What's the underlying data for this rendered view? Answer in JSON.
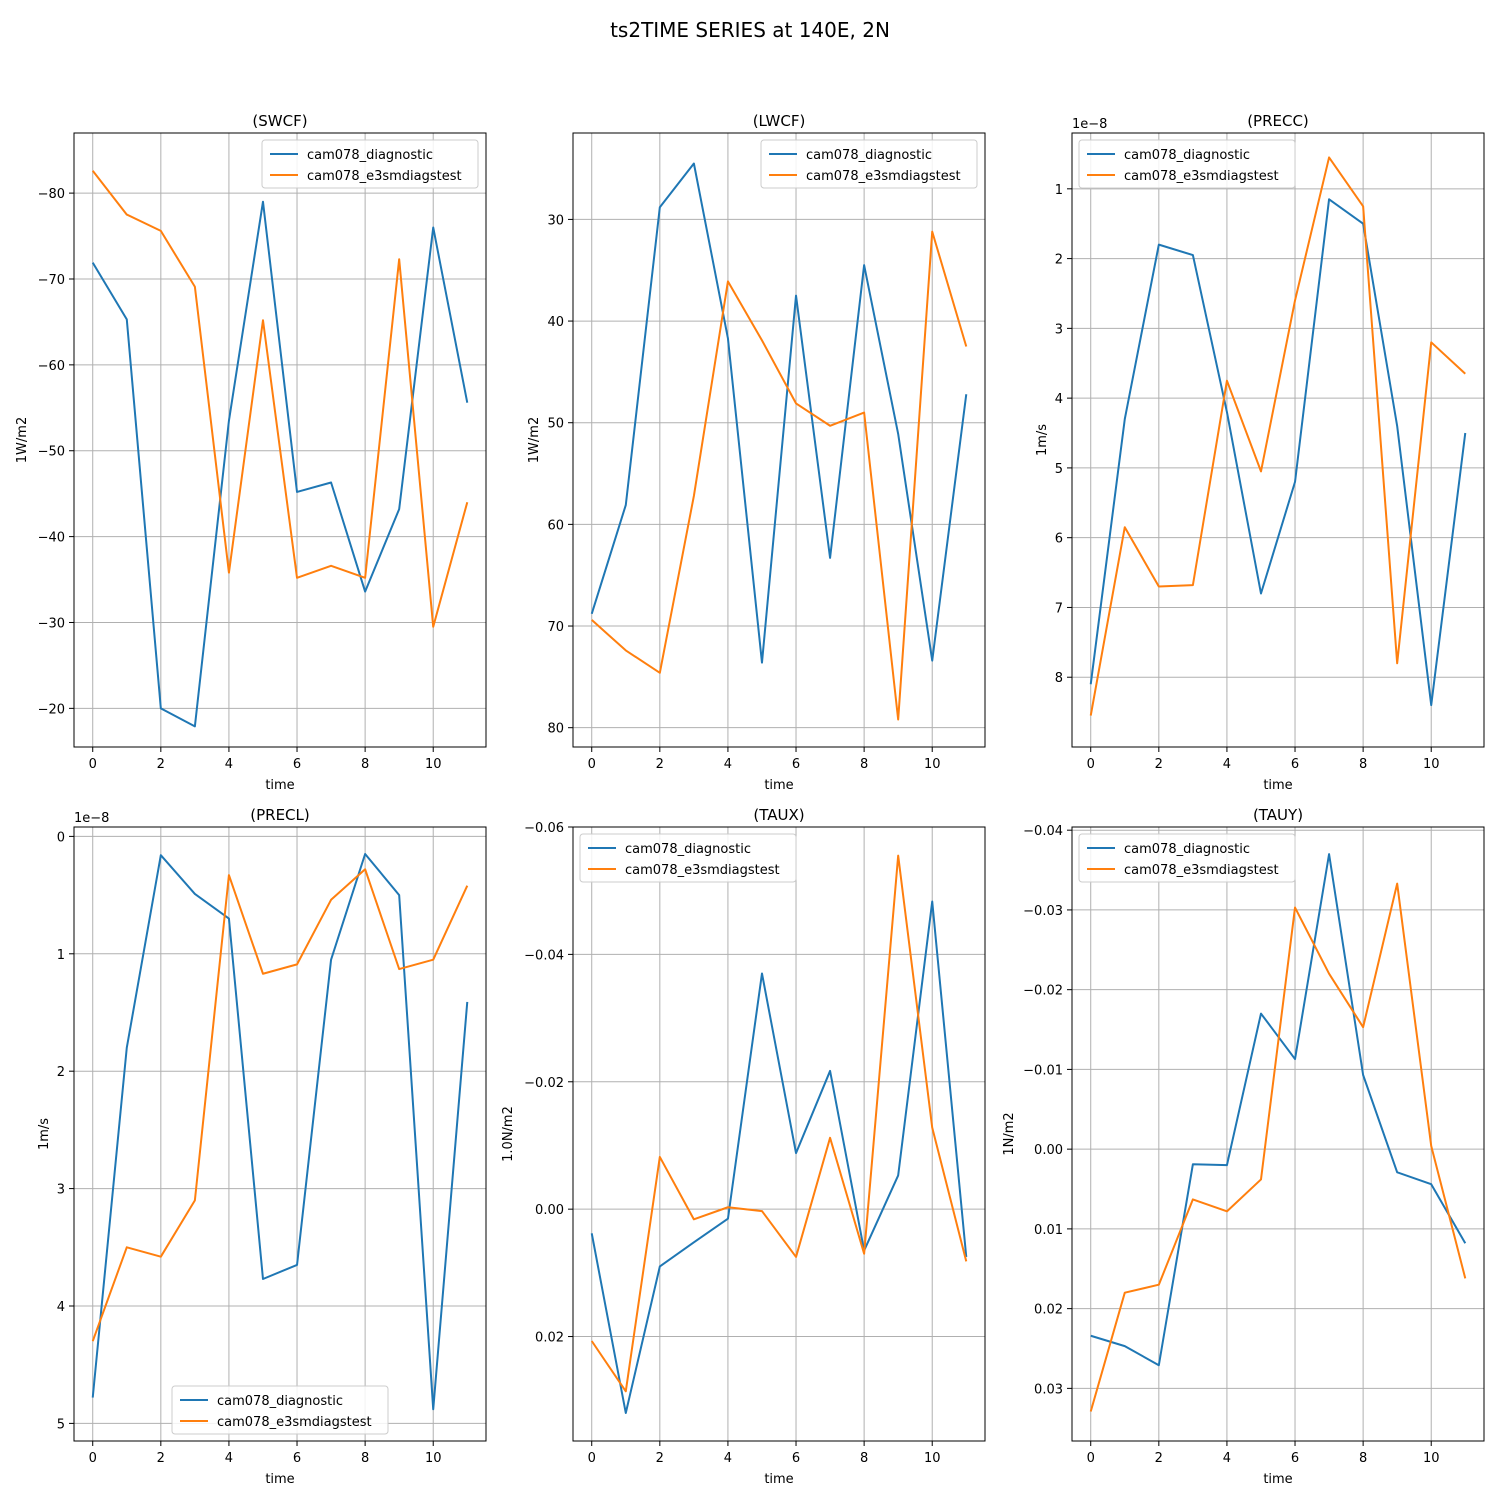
{
  "figure": {
    "suptitle": "ts2TIME SERIES at 140E, 2N"
  },
  "colors": {
    "series0": "#1f77b4",
    "series1": "#ff7f0e",
    "grid": "#b0b0b0",
    "axis": "#000000"
  },
  "chart_data": [
    {
      "type": "line",
      "title": "(SWCF)",
      "xlabel": "time",
      "ylabel": "1W/m2",
      "offset_text": "",
      "grid": true,
      "y_inverted": true,
      "legend_placement": "upper right",
      "xlim": [
        -0.55,
        11.55
      ],
      "ylim": [
        -87,
        -15.5
      ],
      "xticks": [
        0,
        2,
        4,
        6,
        8,
        10
      ],
      "xtick_labels": [
        "0",
        "2",
        "4",
        "6",
        "8",
        "10"
      ],
      "yticks": [
        -80,
        -70,
        -60,
        -50,
        -40,
        -30,
        -20
      ],
      "ytick_labels": [
        "−80",
        "−70",
        "−60",
        "−50",
        "−40",
        "−30",
        "−20"
      ],
      "x": [
        0,
        1,
        2,
        3,
        4,
        5,
        6,
        7,
        8,
        9,
        10,
        11
      ],
      "series": [
        {
          "name": "cam078_diagnostic",
          "values": [
            -71.9,
            -65.3,
            -20.0,
            -17.9,
            -53.5,
            -79.0,
            -45.2,
            -46.3,
            -33.6,
            -43.2,
            -76.0,
            -55.6
          ]
        },
        {
          "name": "cam078_e3smdiagstest",
          "values": [
            -82.6,
            -77.5,
            -75.6,
            -69.1,
            -35.8,
            -65.2,
            -35.2,
            -36.6,
            -35.2,
            -72.3,
            -29.5,
            -44.0
          ]
        }
      ]
    },
    {
      "type": "line",
      "title": "(LWCF)",
      "xlabel": "time",
      "ylabel": "1W/m2",
      "offset_text": "",
      "grid": true,
      "y_inverted": true,
      "legend_placement": "upper right",
      "xlim": [
        -0.55,
        11.55
      ],
      "ylim": [
        21.5,
        81.9
      ],
      "xticks": [
        0,
        2,
        4,
        6,
        8,
        10
      ],
      "xtick_labels": [
        "0",
        "2",
        "4",
        "6",
        "8",
        "10"
      ],
      "yticks": [
        30,
        40,
        50,
        60,
        70,
        80
      ],
      "ytick_labels": [
        "30",
        "40",
        "50",
        "60",
        "70",
        "80"
      ],
      "x": [
        0,
        1,
        2,
        3,
        4,
        5,
        6,
        7,
        8,
        9,
        10,
        11
      ],
      "series": [
        {
          "name": "cam078_diagnostic",
          "values": [
            68.8,
            58.1,
            28.8,
            24.5,
            41.7,
            73.6,
            37.5,
            63.3,
            34.5,
            51.1,
            73.4,
            47.2
          ]
        },
        {
          "name": "cam078_e3smdiagstest",
          "values": [
            69.4,
            72.4,
            74.6,
            57.2,
            36.1,
            41.9,
            48.1,
            50.3,
            49.0,
            79.2,
            31.2,
            42.5
          ]
        }
      ]
    },
    {
      "type": "line",
      "title": "(PRECC)",
      "xlabel": "time",
      "ylabel": "1m/s",
      "offset_text": "1e−8",
      "grid": true,
      "y_inverted": true,
      "legend_placement": "upper left",
      "xlim": [
        -0.55,
        11.55
      ],
      "ylim": [
        0.2,
        9.0
      ],
      "xticks": [
        0,
        2,
        4,
        6,
        8,
        10
      ],
      "xtick_labels": [
        "0",
        "2",
        "4",
        "6",
        "8",
        "10"
      ],
      "yticks": [
        1,
        2,
        3,
        4,
        5,
        6,
        7,
        8
      ],
      "ytick_labels": [
        "1",
        "2",
        "3",
        "4",
        "5",
        "6",
        "7",
        "8"
      ],
      "x": [
        0,
        1,
        2,
        3,
        4,
        5,
        6,
        7,
        8,
        9,
        10,
        11
      ],
      "series": [
        {
          "name": "cam078_diagnostic",
          "values": [
            8.1,
            4.3,
            1.8,
            1.95,
            4.2,
            6.8,
            5.2,
            1.15,
            1.5,
            4.4,
            8.4,
            4.5
          ]
        },
        {
          "name": "cam078_e3smdiagstest",
          "values": [
            8.55,
            5.85,
            6.7,
            6.68,
            3.75,
            5.05,
            2.6,
            0.55,
            1.25,
            7.8,
            3.2,
            3.65
          ]
        }
      ]
    },
    {
      "type": "line",
      "title": "(PRECL)",
      "xlabel": "time",
      "ylabel": "1m/s",
      "offset_text": "1e−8",
      "grid": true,
      "y_inverted": true,
      "legend_placement": "lower center",
      "xlim": [
        -0.55,
        11.55
      ],
      "ylim": [
        -0.08,
        5.15
      ],
      "xticks": [
        0,
        2,
        4,
        6,
        8,
        10
      ],
      "xtick_labels": [
        "0",
        "2",
        "4",
        "6",
        "8",
        "10"
      ],
      "yticks": [
        0,
        1,
        2,
        3,
        4,
        5
      ],
      "ytick_labels": [
        "0",
        "1",
        "2",
        "3",
        "4",
        "5"
      ],
      "x": [
        0,
        1,
        2,
        3,
        4,
        5,
        6,
        7,
        8,
        9,
        10,
        11
      ],
      "series": [
        {
          "name": "cam078_diagnostic",
          "values": [
            4.78,
            1.8,
            0.16,
            0.49,
            0.7,
            3.77,
            3.65,
            1.05,
            0.15,
            0.5,
            4.88,
            1.41
          ]
        },
        {
          "name": "cam078_e3smdiagstest",
          "values": [
            4.3,
            3.5,
            3.58,
            3.1,
            0.33,
            1.17,
            1.09,
            0.54,
            0.28,
            1.13,
            1.05,
            0.42
          ]
        }
      ]
    },
    {
      "type": "line",
      "title": "(TAUX)",
      "xlabel": "time",
      "ylabel": "1.0N/m2",
      "offset_text": "",
      "grid": true,
      "y_inverted": true,
      "legend_placement": "upper left",
      "xlim": [
        -0.55,
        11.55
      ],
      "ylim": [
        -0.06,
        0.0364
      ],
      "xticks": [
        0,
        2,
        4,
        6,
        8,
        10
      ],
      "xtick_labels": [
        "0",
        "2",
        "4",
        "6",
        "8",
        "10"
      ],
      "yticks": [
        -0.06,
        -0.04,
        -0.02,
        0.0,
        0.02
      ],
      "ytick_labels": [
        "−0.06",
        "−0.04",
        "−0.02",
        "0.00",
        "0.02"
      ],
      "x": [
        0,
        1,
        2,
        3,
        4,
        5,
        6,
        7,
        8,
        9,
        10,
        11
      ],
      "series": [
        {
          "name": "cam078_diagnostic",
          "values": [
            0.0038,
            0.032,
            0.009,
            0.0052,
            0.0015,
            -0.037,
            -0.0088,
            -0.0217,
            0.0065,
            -0.0053,
            -0.0483,
            0.0075
          ]
        },
        {
          "name": "cam078_e3smdiagstest",
          "values": [
            0.0207,
            0.0286,
            -0.0082,
            0.0016,
            -0.0003,
            0.0003,
            0.0075,
            -0.0112,
            0.007,
            -0.0555,
            -0.0128,
            0.0082
          ]
        }
      ]
    },
    {
      "type": "line",
      "title": "(TAUY)",
      "xlabel": "time",
      "ylabel": "1N/m2",
      "offset_text": "",
      "grid": true,
      "y_inverted": true,
      "legend_placement": "upper left",
      "xlim": [
        -0.55,
        11.55
      ],
      "ylim": [
        -0.0404,
        0.0366
      ],
      "xticks": [
        0,
        2,
        4,
        6,
        8,
        10
      ],
      "xtick_labels": [
        "0",
        "2",
        "4",
        "6",
        "8",
        "10"
      ],
      "yticks": [
        -0.04,
        -0.03,
        -0.02,
        -0.01,
        0.0,
        0.01,
        0.02,
        0.03
      ],
      "ytick_labels": [
        "−0.04",
        "−0.03",
        "−0.02",
        "−0.01",
        "0.00",
        "0.01",
        "0.02",
        "0.03"
      ],
      "x": [
        0,
        1,
        2,
        3,
        4,
        5,
        6,
        7,
        8,
        9,
        10,
        11
      ],
      "series": [
        {
          "name": "cam078_diagnostic",
          "values": [
            0.0234,
            0.0247,
            0.0271,
            0.0019,
            0.002,
            -0.017,
            -0.0113,
            -0.037,
            -0.0093,
            0.0029,
            0.0044,
            0.0118
          ]
        },
        {
          "name": "cam078_e3smdiagstest",
          "values": [
            0.0329,
            0.018,
            0.017,
            0.0063,
            0.0078,
            0.0038,
            -0.0303,
            -0.022,
            -0.0153,
            -0.0333,
            -0.0004,
            0.0162
          ]
        }
      ]
    }
  ]
}
